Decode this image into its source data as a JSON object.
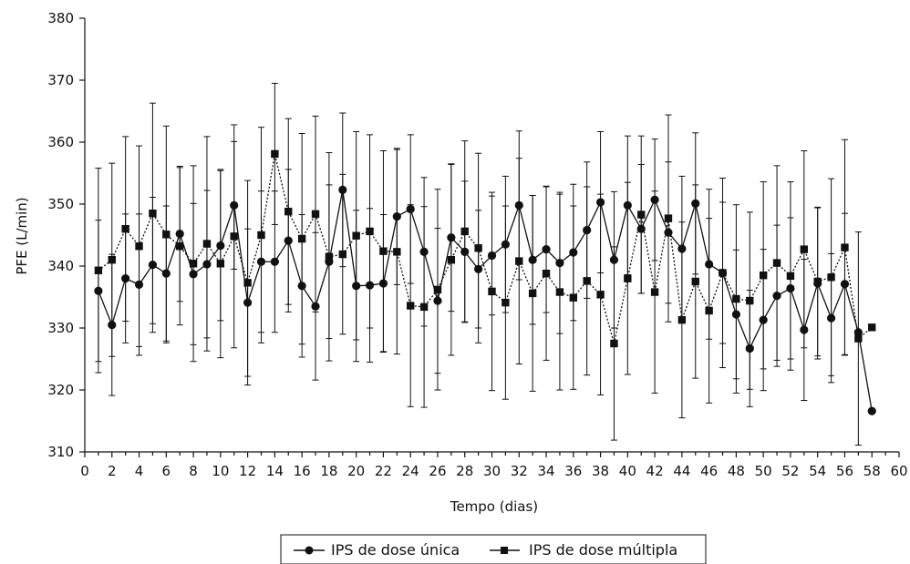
{
  "chart_data": {
    "type": "line",
    "xlabel": "Tempo (dias)",
    "ylabel": "PFE (L/min)",
    "xlim": [
      0,
      60
    ],
    "ylim": [
      310,
      380
    ],
    "x_ticks": [
      "0",
      "2",
      "4",
      "6",
      "8",
      "10",
      "12",
      "14",
      "16",
      "18",
      "20",
      "22",
      "24",
      "26",
      "28",
      "30",
      "32",
      "34",
      "36",
      "38",
      "40",
      "42",
      "44",
      "46",
      "48",
      "50",
      "52",
      "54",
      "56",
      "58",
      "60"
    ],
    "y_ticks": [
      "310",
      "320",
      "330",
      "340",
      "350",
      "360",
      "370",
      "380"
    ],
    "grid": false,
    "legend_position": "bottom",
    "series": [
      {
        "name": "IPS de dose única",
        "marker": "circle",
        "line_style": "solid",
        "color": "#111111",
        "points": [
          [
            1,
            336.0,
            11.4
          ],
          [
            2,
            330.5,
            11.4
          ],
          [
            3,
            338.0,
            10.4
          ],
          [
            4,
            337.0,
            11.4
          ],
          [
            5,
            340.2,
            10.9
          ],
          [
            6,
            338.8,
            10.9
          ],
          [
            7,
            345.2,
            10.9
          ],
          [
            8,
            338.7,
            11.4
          ],
          [
            9,
            340.3,
            11.9
          ],
          [
            10,
            343.3,
            12.1
          ],
          [
            11,
            349.8,
            10.3
          ],
          [
            12,
            334.1,
            11.9
          ],
          [
            13,
            340.7,
            11.4
          ],
          [
            14,
            340.7,
            11.4
          ],
          [
            15,
            344.1,
            11.5
          ],
          [
            16,
            336.8,
            11.5
          ],
          [
            17,
            333.5,
            11.9
          ],
          [
            18,
            340.7,
            12.4
          ],
          [
            19,
            352.3,
            12.4
          ],
          [
            20,
            336.8,
            12.2
          ],
          [
            21,
            336.9,
            12.4
          ],
          [
            22,
            337.2,
            11.1
          ],
          [
            23,
            348.0,
            11.0
          ],
          [
            24,
            349.2,
            12.0
          ],
          [
            25,
            342.3,
            12.0
          ],
          [
            26,
            334.4,
            11.7
          ],
          [
            27,
            344.6,
            11.9
          ],
          [
            28,
            342.3,
            11.4
          ],
          [
            29,
            339.5,
            9.5
          ],
          [
            30,
            341.7,
            9.6
          ],
          [
            31,
            343.5,
            11.0
          ],
          [
            32,
            349.8,
            12.0
          ],
          [
            33,
            341.0,
            10.4
          ],
          [
            34,
            342.7,
            10.2
          ],
          [
            35,
            340.5,
            11.4
          ],
          [
            36,
            342.2,
            11.0
          ],
          [
            37,
            345.8,
            11.0
          ],
          [
            38,
            350.3,
            11.4
          ],
          [
            39,
            341.0,
            11.0
          ],
          [
            40,
            349.8,
            11.2
          ],
          [
            41,
            346.0,
            10.4
          ],
          [
            42,
            350.7,
            9.8
          ],
          [
            43,
            345.4,
            11.4
          ],
          [
            44,
            342.8,
            11.7
          ],
          [
            45,
            350.1,
            11.4
          ],
          [
            46,
            340.3,
            12.1
          ],
          [
            47,
            338.9,
            11.4
          ],
          [
            48,
            332.2,
            10.4
          ],
          [
            49,
            326.7,
            9.4
          ],
          [
            50,
            331.3,
            11.4
          ],
          [
            51,
            335.2,
            11.4
          ],
          [
            52,
            336.4,
            11.4
          ],
          [
            53,
            329.7,
            11.4
          ],
          [
            54,
            337.2,
            12.2
          ],
          [
            55,
            331.6,
            10.4
          ],
          [
            56,
            337.1,
            11.4
          ],
          [
            57,
            329.3,
            0
          ],
          [
            58,
            316.6,
            0
          ]
        ]
      },
      {
        "name": "IPS de dose múltipla",
        "marker": "square",
        "line_style": "dotted",
        "color": "#111111",
        "points": [
          [
            1,
            339.3,
            16.5
          ],
          [
            2,
            341.0,
            15.6
          ],
          [
            3,
            346.0,
            14.9
          ],
          [
            4,
            343.2,
            16.2
          ],
          [
            5,
            348.5,
            17.8
          ],
          [
            6,
            345.1,
            17.5
          ],
          [
            7,
            343.2,
            12.7
          ],
          [
            8,
            340.4,
            15.8
          ],
          [
            9,
            343.6,
            17.3
          ],
          [
            10,
            340.4,
            15.2
          ],
          [
            11,
            344.8,
            18.0
          ],
          [
            12,
            337.3,
            16.5
          ],
          [
            13,
            345.0,
            17.4
          ],
          [
            14,
            358.1,
            11.4
          ],
          [
            15,
            348.8,
            15.0
          ],
          [
            16,
            344.4,
            17.0
          ],
          [
            17,
            348.4,
            15.8
          ],
          [
            18,
            341.5,
            16.8
          ],
          [
            19,
            341.9,
            12.9
          ],
          [
            20,
            344.9,
            16.8
          ],
          [
            21,
            345.6,
            15.6
          ],
          [
            22,
            342.4,
            16.2
          ],
          [
            23,
            342.3,
            16.5
          ],
          [
            24,
            333.6,
            16.3
          ],
          [
            25,
            333.4,
            16.2
          ],
          [
            26,
            336.2,
            16.2
          ],
          [
            27,
            341.0,
            15.4
          ],
          [
            28,
            345.6,
            14.6
          ],
          [
            29,
            342.9,
            15.3
          ],
          [
            30,
            335.9,
            16.0
          ],
          [
            31,
            334.1,
            15.6
          ],
          [
            32,
            340.8,
            16.6
          ],
          [
            33,
            335.6,
            15.8
          ],
          [
            34,
            338.8,
            14.0
          ],
          [
            35,
            335.8,
            15.8
          ],
          [
            36,
            334.9,
            14.8
          ],
          [
            37,
            337.6,
            15.2
          ],
          [
            38,
            335.4,
            16.2
          ],
          [
            39,
            327.5,
            15.6
          ],
          [
            40,
            338.0,
            15.5
          ],
          [
            41,
            348.3,
            12.7
          ],
          [
            42,
            335.8,
            16.3
          ],
          [
            43,
            347.7,
            16.7
          ],
          [
            44,
            331.3,
            15.8
          ],
          [
            45,
            337.5,
            15.6
          ],
          [
            46,
            332.8,
            14.9
          ],
          [
            47,
            338.9,
            15.3
          ],
          [
            48,
            334.7,
            15.2
          ],
          [
            49,
            334.4,
            14.3
          ],
          [
            50,
            338.5,
            15.1
          ],
          [
            51,
            340.5,
            15.7
          ],
          [
            52,
            338.4,
            15.2
          ],
          [
            53,
            342.7,
            15.9
          ],
          [
            54,
            337.5,
            12.0
          ],
          [
            55,
            338.2,
            15.9
          ],
          [
            56,
            343.0,
            17.4
          ],
          [
            57,
            328.3,
            17.2
          ],
          [
            58,
            330.1,
            0
          ]
        ]
      }
    ]
  }
}
